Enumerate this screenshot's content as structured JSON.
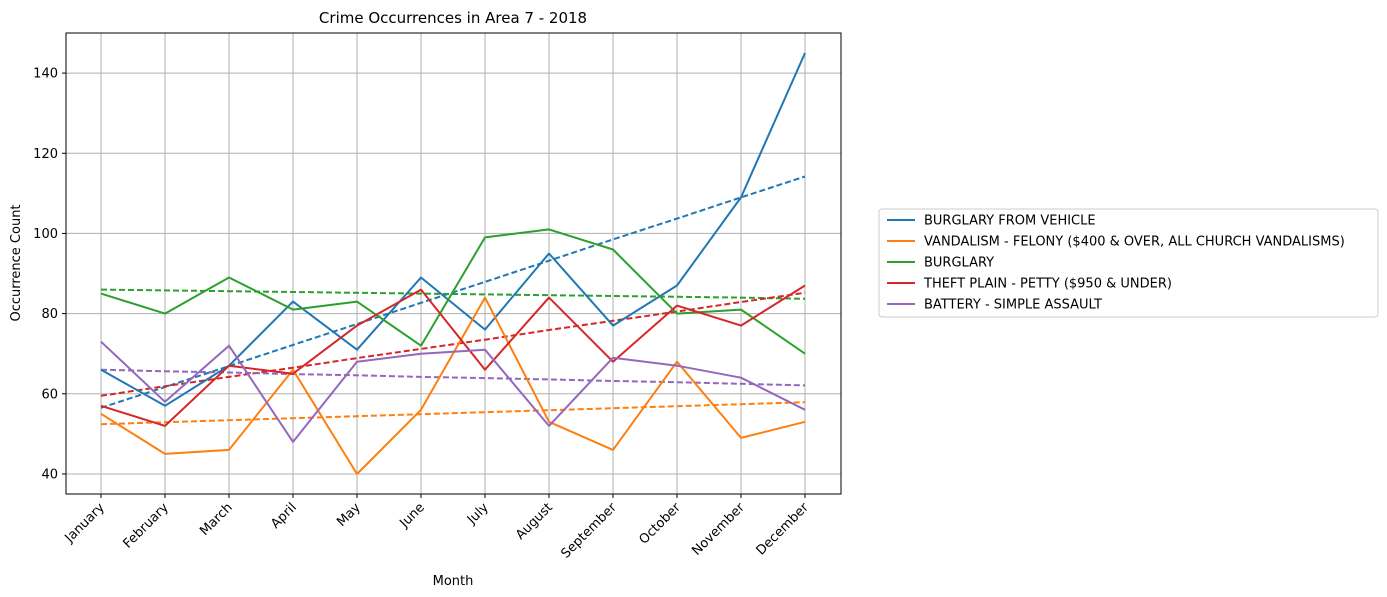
{
  "chart_data": {
    "type": "line",
    "title": "Crime Occurrences in Area 7 - 2018",
    "xlabel": "Month",
    "ylabel": "Occurrence Count",
    "categories": [
      "January",
      "February",
      "March",
      "April",
      "May",
      "June",
      "July",
      "August",
      "September",
      "October",
      "November",
      "December"
    ],
    "ylim": [
      35,
      150
    ],
    "yticks": [
      40,
      60,
      80,
      100,
      120,
      140
    ],
    "grid": true,
    "legend_position": "right",
    "series": [
      {
        "name": "BURGLARY FROM VEHICLE",
        "color": "#1f77b4",
        "values": [
          66,
          57,
          67,
          83,
          71,
          89,
          76,
          95,
          77,
          87,
          109,
          145
        ],
        "trend": [
          56.5,
          61.7,
          66.9,
          72.2,
          77.4,
          82.7,
          87.9,
          93.2,
          98.5,
          103.7,
          109.0,
          114.2
        ]
      },
      {
        "name": "VANDALISM - FELONY ($400 & OVER, ALL CHURCH VANDALISMS)",
        "color": "#ff7f0e",
        "values": [
          55,
          45,
          46,
          66,
          40,
          56,
          84,
          53,
          46,
          68,
          49,
          53
        ],
        "trend": [
          52.4,
          52.9,
          53.4,
          53.9,
          54.4,
          54.9,
          55.4,
          55.9,
          56.4,
          56.9,
          57.4,
          57.9
        ]
      },
      {
        "name": "BURGLARY",
        "color": "#2ca02c",
        "values": [
          85,
          80,
          89,
          81,
          83,
          72,
          99,
          101,
          96,
          80,
          81,
          70
        ],
        "trend": [
          86.0,
          85.8,
          85.6,
          85.4,
          85.2,
          85.0,
          84.8,
          84.6,
          84.4,
          84.2,
          84.0,
          83.7
        ]
      },
      {
        "name": "THEFT PLAIN - PETTY ($950 & UNDER)",
        "color": "#d62728",
        "values": [
          57,
          52,
          67,
          65,
          77,
          86,
          66,
          84,
          68,
          82,
          77,
          87
        ],
        "trend": [
          59.5,
          61.9,
          64.2,
          66.5,
          68.9,
          71.2,
          73.5,
          75.9,
          78.2,
          80.5,
          82.9,
          85.2
        ]
      },
      {
        "name": "BATTERY - SIMPLE ASSAULT",
        "color": "#9467bd",
        "values": [
          73,
          58,
          72,
          48,
          68,
          70,
          71,
          52,
          69,
          67,
          64,
          56
        ],
        "trend": [
          66.0,
          65.6,
          65.3,
          64.9,
          64.6,
          64.2,
          63.9,
          63.6,
          63.2,
          62.9,
          62.5,
          62.1
        ]
      }
    ]
  }
}
